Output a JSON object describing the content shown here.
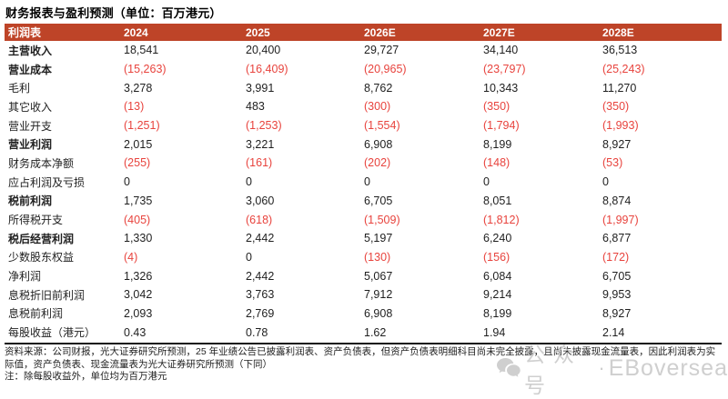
{
  "title": "财务报表与盈利预测（单位：百万港元）",
  "colors": {
    "header_bg": "#BE4428",
    "negative_red": "#E8433D",
    "body_text": "#1f1f1f",
    "watermark_gray": "#c7c7c7"
  },
  "table": {
    "columns": [
      "利润表",
      "2024",
      "2025",
      "2026E",
      "2027E",
      "2028E"
    ],
    "rows": [
      {
        "label": "主营收入",
        "bold": true,
        "values": [
          "18,541",
          "20,400",
          "29,727",
          "34,140",
          "36,513"
        ]
      },
      {
        "label": "营业成本",
        "bold": true,
        "values": [
          "(15,263)",
          "(16,409)",
          "(20,965)",
          "(23,797)",
          "(25,243)"
        ]
      },
      {
        "label": "毛利",
        "bold": false,
        "values": [
          "3,278",
          "3,991",
          "8,762",
          "10,343",
          "11,270"
        ]
      },
      {
        "label": "其它收入",
        "bold": false,
        "values": [
          "(13)",
          "483",
          "(300)",
          "(350)",
          "(350)"
        ]
      },
      {
        "label": "营业开支",
        "bold": false,
        "values": [
          "(1,251)",
          "(1,253)",
          "(1,554)",
          "(1,794)",
          "(1,993)"
        ]
      },
      {
        "label": "营业利润",
        "bold": true,
        "values": [
          "2,015",
          "3,221",
          "6,908",
          "8,199",
          "8,927"
        ]
      },
      {
        "label": "财务成本净额",
        "bold": false,
        "values": [
          "(255)",
          "(161)",
          "(202)",
          "(148)",
          "(53)"
        ]
      },
      {
        "label": "应占利润及亏损",
        "bold": false,
        "values": [
          "0",
          "0",
          "0",
          "0",
          "0"
        ]
      },
      {
        "label": "税前利润",
        "bold": true,
        "values": [
          "1,735",
          "3,060",
          "6,705",
          "8,051",
          "8,874"
        ]
      },
      {
        "label": "所得税开支",
        "bold": false,
        "values": [
          "(405)",
          "(618)",
          "(1,509)",
          "(1,812)",
          "(1,997)"
        ]
      },
      {
        "label": "税后经营利润",
        "bold": true,
        "values": [
          "1,330",
          "2,442",
          "5,197",
          "6,240",
          "6,877"
        ]
      },
      {
        "label": "少数股东权益",
        "bold": false,
        "values": [
          "(4)",
          "0",
          "(130)",
          "(156)",
          "(172)"
        ]
      },
      {
        "label": "净利润",
        "bold": false,
        "values": [
          "1,326",
          "2,442",
          "5,067",
          "6,084",
          "6,705"
        ]
      },
      {
        "label": "息税折旧前利润",
        "bold": false,
        "values": [
          "3,042",
          "3,763",
          "7,912",
          "9,214",
          "9,953"
        ]
      },
      {
        "label": "息税前利润",
        "bold": false,
        "values": [
          "2,093",
          "2,769",
          "6,908",
          "8,199",
          "8,927"
        ]
      },
      {
        "label": "每股收益（港元）",
        "bold": false,
        "values": [
          "0.43",
          "0.78",
          "1.62",
          "1.94",
          "2.14"
        ]
      }
    ]
  },
  "footnotes": {
    "source": "资料来源：公司财报，光大证券研究所预测，25 年业绩公告已披露利润表、资产负债表，但资产负债表明细科目尚未完全披露，且尚未披露现金流量表，因此利润表为实际值，资产负债表、现金流量表为光大证券研究所预测（下同）",
    "note": "注：除每股收益外，单位均为百万港元"
  },
  "watermark": {
    "icon": "wechat-icon",
    "cn_text": "公众号",
    "separator": "·",
    "en_text": "EBoversea"
  }
}
